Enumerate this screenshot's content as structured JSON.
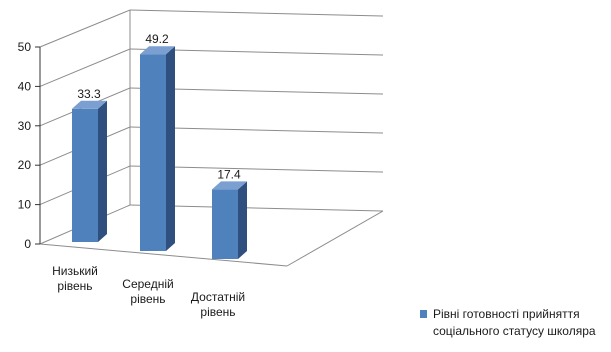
{
  "chart_data": {
    "type": "bar",
    "categories": [
      "Низький рівень",
      "Середній рівень",
      "Достатній рівень"
    ],
    "category_lines": [
      [
        "Низький",
        "рівень"
      ],
      [
        "Середній",
        "рівень"
      ],
      [
        "Достатній",
        "рівень"
      ]
    ],
    "series": [
      {
        "name": "Рівні готовності прийняття соціального статусу школяра",
        "values": [
          33.3,
          49.2,
          17.4
        ]
      }
    ],
    "data_labels": [
      "33.3",
      "49.2",
      "17.4"
    ],
    "yticks": [
      "0",
      "10",
      "20",
      "30",
      "40",
      "50"
    ],
    "ylim": [
      0,
      50
    ],
    "grid": true,
    "legend_position": "bottom-right",
    "title": "",
    "xlabel": "",
    "ylabel": "",
    "colors": {
      "bar_front": "#4f81bd",
      "bar_side": "#2f4f7f",
      "bar_top": "#7a9fd0",
      "grid": "#8c8c8c"
    }
  }
}
